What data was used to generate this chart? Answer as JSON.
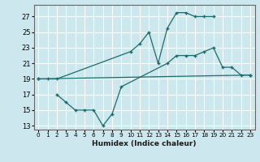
{
  "xlabel": "Humidex (Indice chaleur)",
  "bg_color": "#cce8ee",
  "line_color": "#1a6b6b",
  "grid_color": "#ffffff",
  "xlim": [
    -0.5,
    23.5
  ],
  "ylim": [
    12.5,
    28.5
  ],
  "xticks": [
    0,
    1,
    2,
    3,
    4,
    5,
    6,
    7,
    8,
    9,
    10,
    11,
    12,
    13,
    14,
    15,
    16,
    17,
    18,
    19,
    20,
    21,
    22,
    23
  ],
  "yticks": [
    13,
    15,
    17,
    19,
    21,
    23,
    25,
    27
  ],
  "line1_x": [
    0,
    1,
    2,
    10,
    11,
    12,
    13,
    14,
    15,
    16,
    17,
    18,
    19
  ],
  "line1_y": [
    19,
    19,
    19,
    22.5,
    23.5,
    25,
    21,
    25.5,
    27.5,
    27.5,
    27,
    27,
    27
  ],
  "line2_x": [
    0,
    23
  ],
  "line2_y": [
    19,
    19.5
  ],
  "line3_x": [
    2,
    3,
    4,
    5,
    6,
    7,
    8,
    9,
    14,
    15,
    16,
    17,
    18,
    19,
    20,
    21,
    22,
    23
  ],
  "line3_y": [
    17,
    16,
    15,
    15,
    15,
    13,
    14.5,
    18,
    21,
    22,
    22,
    22,
    22.5,
    23,
    20.5,
    20.5,
    19.5,
    19.5
  ]
}
